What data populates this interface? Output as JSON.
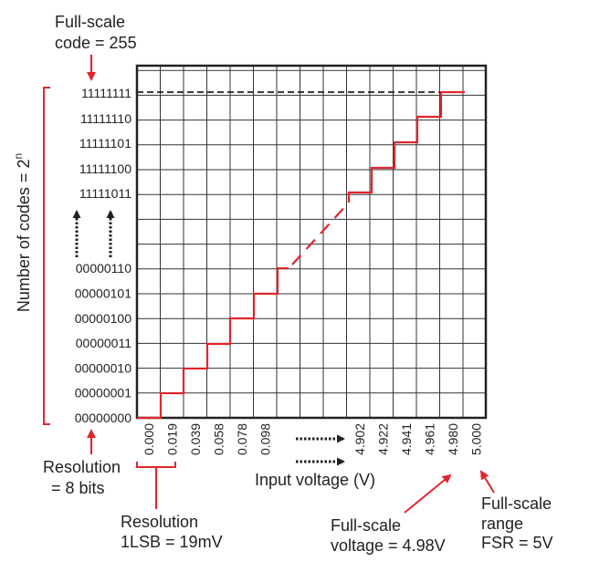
{
  "annotations": {
    "full_scale_code": [
      "Full-scale",
      "code = 255"
    ],
    "number_of_codes": "Number of codes = 2",
    "number_of_codes_sup": "n",
    "resolution_bits": [
      "Resolution",
      "= 8 bits"
    ],
    "resolution_lsb": [
      "Resolution",
      "1LSB = 19mV"
    ],
    "full_scale_voltage": [
      "Full-scale",
      "voltage = 4.98V"
    ],
    "full_scale_range": [
      "Full-scale",
      "range",
      "FSR = 5V"
    ]
  },
  "chart_data": {
    "type": "line",
    "xlabel": "Input voltage (V)",
    "y_codes_low": [
      "00000000",
      "00000001",
      "00000010",
      "00000011",
      "00000100",
      "00000101",
      "00000110"
    ],
    "y_codes_high": [
      "11111011",
      "11111100",
      "11111101",
      "11111110",
      "11111111"
    ],
    "x_ticks_low": [
      "0.000",
      "0.019",
      "0.039",
      "0.058",
      "0.078",
      "0.098"
    ],
    "x_ticks_high": [
      "4.902",
      "4.922",
      "4.941",
      "4.961",
      "4.980",
      "5.000"
    ],
    "colors": {
      "staircase": "#e0262c",
      "annotation": "#e0262c",
      "grid": "#222222"
    }
  }
}
